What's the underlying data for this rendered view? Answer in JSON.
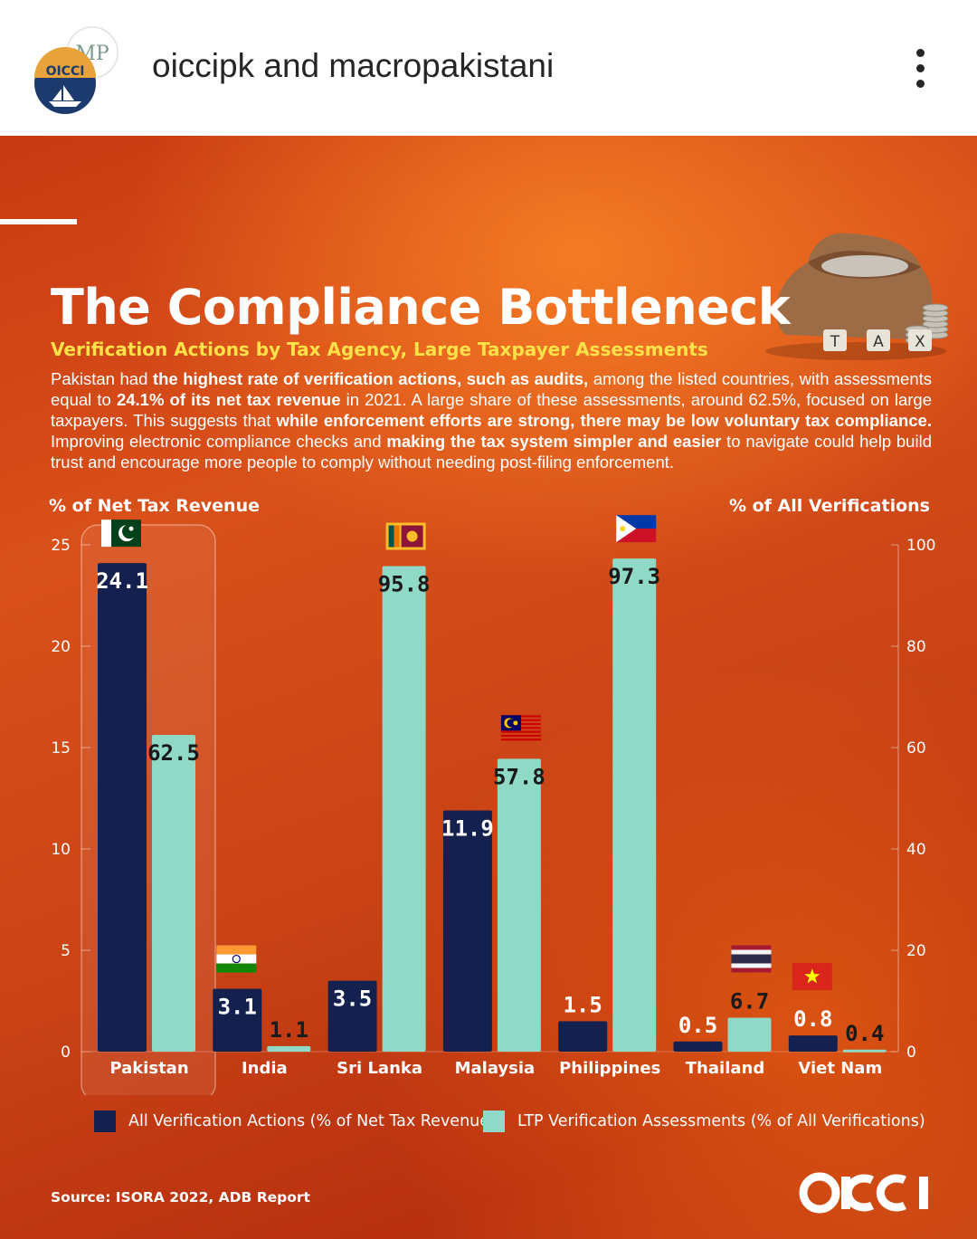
{
  "header": {
    "author_line": "oiccipk and macropakistani"
  },
  "card": {
    "title": "The Compliance Bottleneck",
    "subtitle": "Verification Actions by Tax Agency, Large Taxpayer Assessments",
    "body": {
      "p1": "Pakistan had ",
      "b1": "the highest rate of verification actions, such as audits,",
      "p2": " among the listed countries, with assessments equal to ",
      "b2": "24.1% of its net tax revenue",
      "p3": " in 2021. A large share of these assessments, around 62.5%, focused on large taxpayers. This suggests that ",
      "b3": "while enforcement efforts are strong, there may be low voluntary tax compliance.",
      "p4": " Improving electronic compliance checks and ",
      "b4": "making the tax system simpler and easier",
      "p5": " to navigate could help build trust and encourage more people to comply without needing post-filing enforcement."
    },
    "tax_tiles": [
      "T",
      "A",
      "X"
    ],
    "source": "Source: ISORA 2022, ADB Report",
    "logo_text": "OICCI"
  },
  "chart_data": {
    "type": "bar",
    "ylabel_left": "% of Net Tax Revenue",
    "ylabel_right": "% of All Verifications",
    "ylim_left": [
      0,
      25
    ],
    "ylim_right": [
      0,
      100
    ],
    "yticks_left": [
      "0",
      "5",
      "10",
      "15",
      "20",
      "25"
    ],
    "yticks_right": [
      "0",
      "20",
      "40",
      "60",
      "80",
      "100"
    ],
    "categories": [
      "Pakistan",
      "India",
      "Sri Lanka",
      "Malaysia",
      "Philippines",
      "Thailand",
      "Viet Nam"
    ],
    "highlight": "Pakistan",
    "series": [
      {
        "name": "All Verification Actions (% of Net Tax Revenue)",
        "axis": "left",
        "color": "#14214f",
        "values": [
          24.1,
          3.1,
          3.5,
          11.9,
          1.5,
          0.5,
          0.8
        ],
        "labels": [
          "24.1",
          "3.1",
          "3.5",
          "11.9",
          "1.5",
          "0.5",
          "0.8"
        ]
      },
      {
        "name": "LTP Verification Assessments (% of All Verifications)",
        "axis": "right",
        "color": "#8fd9c6",
        "values": [
          62.5,
          1.1,
          95.8,
          57.8,
          97.3,
          6.7,
          0.4
        ],
        "labels": [
          "62.5",
          "1.1",
          "95.8",
          "57.8",
          "97.3",
          "6.7",
          "0.4"
        ]
      }
    ],
    "grid": false,
    "legend_position": "bottom"
  },
  "colors": {
    "dark_bar": "#14214f",
    "light_bar": "#8fd9c6",
    "subtitle_yellow": "#ffe24a",
    "background_orange": "#d24a16"
  }
}
